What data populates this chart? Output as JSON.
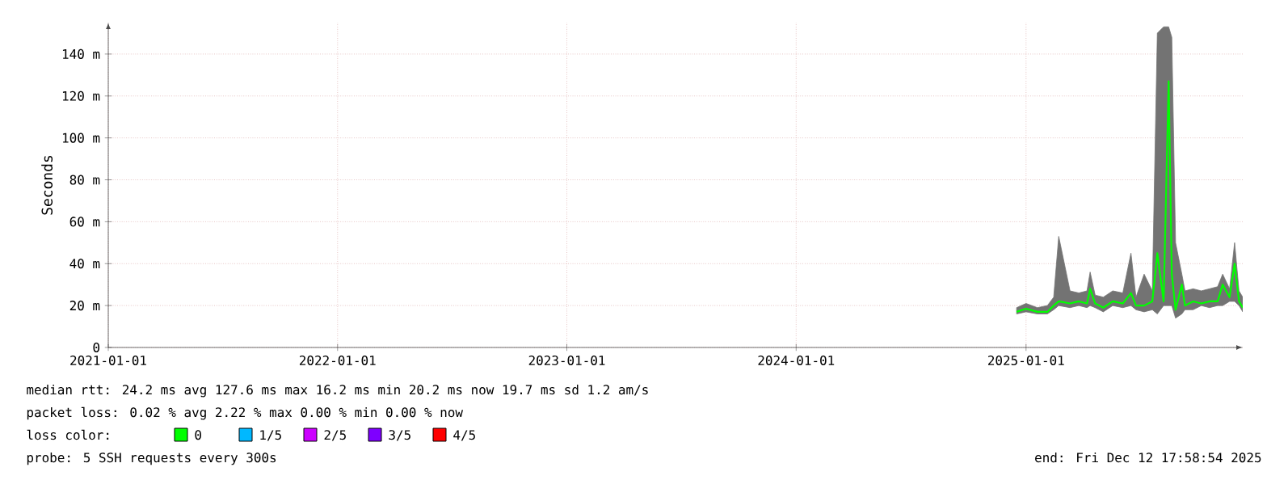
{
  "chart_data": {
    "type": "line",
    "ylabel": "Seconds",
    "legend_title": "loss color:",
    "x": [
      "2024-12-17",
      "2025-01-01",
      "2025-01-19",
      "2025-02-04",
      "2025-02-14",
      "2025-02-22",
      "2025-03-12",
      "2025-03-26",
      "2025-04-08",
      "2025-04-13",
      "2025-04-21",
      "2025-05-04",
      "2025-05-19",
      "2025-06-04",
      "2025-06-17",
      "2025-06-25",
      "2025-07-08",
      "2025-07-21",
      "2025-07-29",
      "2025-08-08",
      "2025-08-16",
      "2025-08-21",
      "2025-08-27",
      "2025-09-06",
      "2025-09-11",
      "2025-09-24",
      "2025-10-07",
      "2025-10-20",
      "2025-11-02",
      "2025-11-10",
      "2025-11-21",
      "2025-11-29",
      "2025-12-06",
      "2025-12-12"
    ],
    "series": [
      {
        "name": "0",
        "color": "#00ff00",
        "values": [
          17,
          18.5,
          17,
          17,
          20,
          22,
          21,
          22,
          21,
          28,
          21,
          19,
          22,
          21,
          26,
          20,
          20,
          22,
          45,
          22,
          127,
          35,
          18,
          30,
          20,
          22,
          21,
          22,
          22,
          30,
          24,
          40,
          22,
          19
        ],
        "lower": [
          16,
          17,
          16,
          16,
          18,
          20,
          19,
          20,
          19,
          20,
          19,
          17,
          20,
          19,
          20,
          18,
          17,
          18,
          16,
          20,
          20,
          20,
          14,
          16,
          18,
          18,
          20,
          19,
          20,
          20,
          22,
          22,
          20,
          17
        ],
        "upper": [
          19,
          21,
          19,
          20,
          24,
          53,
          27,
          26,
          27,
          36,
          25,
          24,
          27,
          26,
          45,
          24,
          35,
          27,
          150,
          153,
          153,
          148,
          50,
          35,
          27,
          28,
          27,
          28,
          29,
          35,
          28,
          50,
          27,
          24
        ]
      },
      {
        "name": "1/5",
        "color": "#00b8ff",
        "values": [
          null,
          null,
          null,
          null,
          null,
          null,
          null,
          null,
          null,
          null,
          null,
          null,
          null,
          null,
          null,
          null,
          null,
          null,
          null,
          null,
          null,
          null,
          null,
          null,
          null,
          null,
          null,
          null,
          null,
          null,
          null,
          null,
          null,
          null
        ]
      },
      {
        "name": "2/5",
        "color": "#cc00ff",
        "values": [
          null,
          null,
          null,
          null,
          null,
          null,
          null,
          null,
          null,
          null,
          null,
          null,
          null,
          null,
          null,
          null,
          null,
          null,
          null,
          null,
          null,
          null,
          null,
          null,
          null,
          null,
          null,
          null,
          null,
          null,
          null,
          null,
          null,
          null
        ]
      },
      {
        "name": "3/5",
        "color": "#7e00ff",
        "values": [
          null,
          null,
          null,
          null,
          null,
          null,
          null,
          null,
          null,
          null,
          null,
          null,
          null,
          null,
          null,
          null,
          null,
          null,
          null,
          null,
          null,
          null,
          null,
          null,
          null,
          null,
          null,
          null,
          null,
          null,
          null,
          null,
          null,
          null
        ]
      },
      {
        "name": "4/5",
        "color": "#ff0000",
        "values": [
          null,
          null,
          null,
          null,
          null,
          null,
          null,
          null,
          null,
          null,
          null,
          null,
          null,
          null,
          null,
          null,
          null,
          null,
          null,
          null,
          null,
          null,
          null,
          null,
          null,
          null,
          null,
          null,
          null,
          null,
          null,
          null,
          null,
          null
        ]
      }
    ],
    "xlim": [
      "2021-01-01",
      "2025-12-12"
    ],
    "xticks": [
      "2021-01-01",
      "2022-01-01",
      "2023-01-01",
      "2024-01-01",
      "2025-01-01"
    ],
    "ylim": [
      0,
      155
    ],
    "yticks": [
      0,
      {
        "value": 20,
        "label": "20 m"
      },
      {
        "value": 40,
        "label": "40 m"
      },
      {
        "value": 60,
        "label": "60 m"
      },
      {
        "value": 80,
        "label": "80 m"
      },
      {
        "value": 100,
        "label": "100 m"
      },
      {
        "value": 120,
        "label": "120 m"
      },
      {
        "value": 140,
        "label": "140 m"
      }
    ],
    "grid": true,
    "legend": "bottom",
    "marker": "none",
    "line_style": "solid",
    "annotations": [
      "median rtt: 24.2 ms avg 127.6 ms max 16.2 ms min 20.2 ms now 19.7 ms sd 1.2 am/s",
      "packet loss: 0.02 % avg 2.22 % max 0.00 % min 0.00 % now",
      "probe: 5 SSH requests every 300s",
      "end: Fri Dec 12 17:58:54 2025"
    ]
  }
}
